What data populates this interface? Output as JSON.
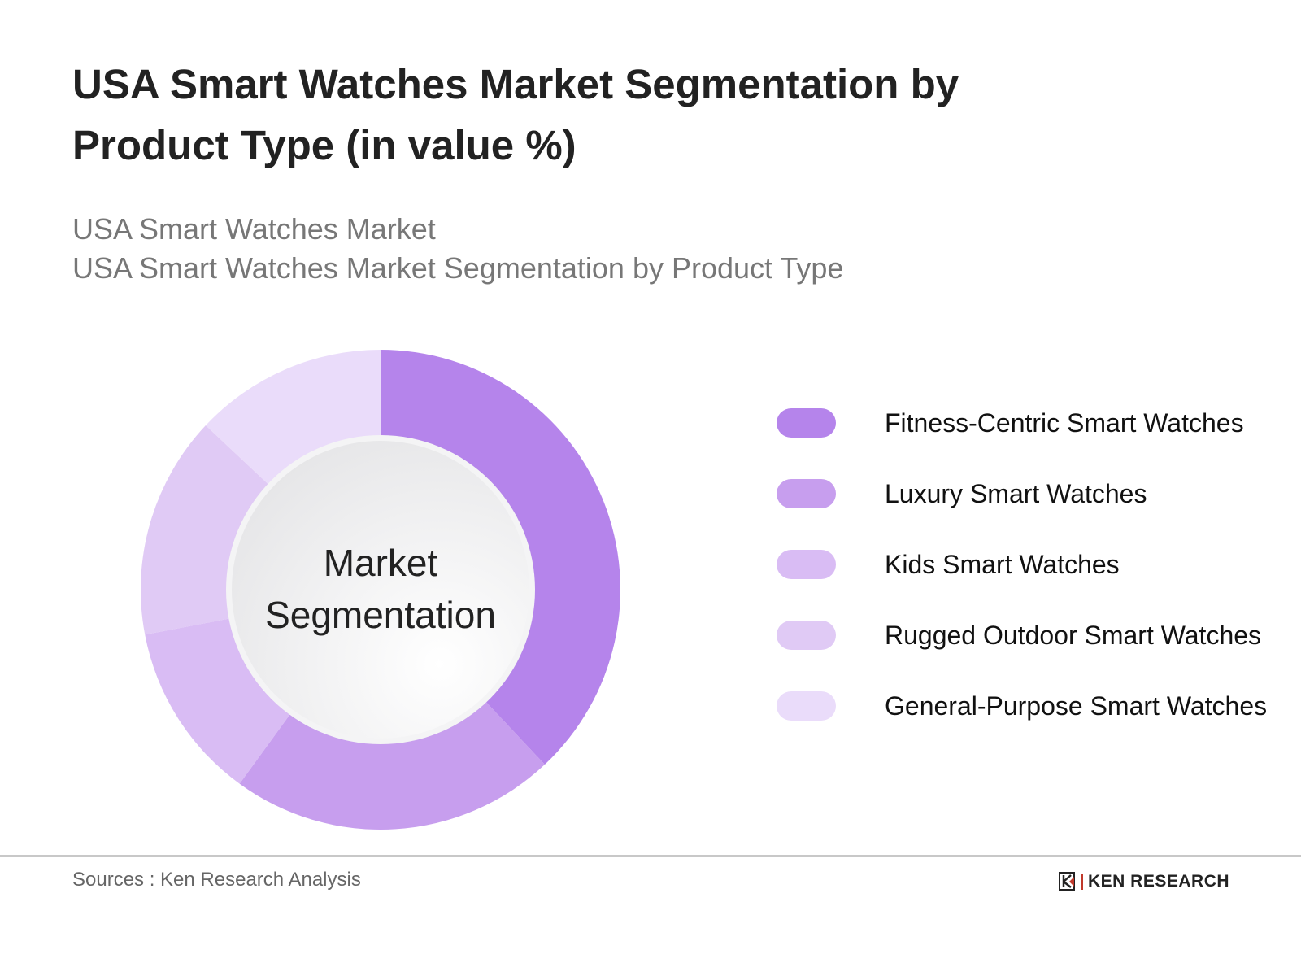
{
  "header": {
    "title": "USA Smart Watches Market Segmentation by Product Type (in value %)",
    "subtitle_line1": "USA Smart Watches Market",
    "subtitle_line2": "USA Smart Watches Market Segmentation by Product Type"
  },
  "chart_data": {
    "type": "pie",
    "variant": "donut",
    "center_label": "Market Segmentation",
    "categories": [
      "Fitness-Centric Smart Watches",
      "Luxury Smart Watches",
      "Kids Smart Watches",
      "Rugged Outdoor Smart Watches",
      "General-Purpose Smart Watches"
    ],
    "values": [
      38,
      22,
      12,
      15,
      13
    ],
    "colors": [
      "#b584eb",
      "#c79eee",
      "#d9bcf4",
      "#e0caf5",
      "#eadcfa"
    ],
    "legend_position": "right"
  },
  "footer": {
    "source": "Sources : Ken Research Analysis",
    "logo_text": "KEN RESEARCH"
  }
}
